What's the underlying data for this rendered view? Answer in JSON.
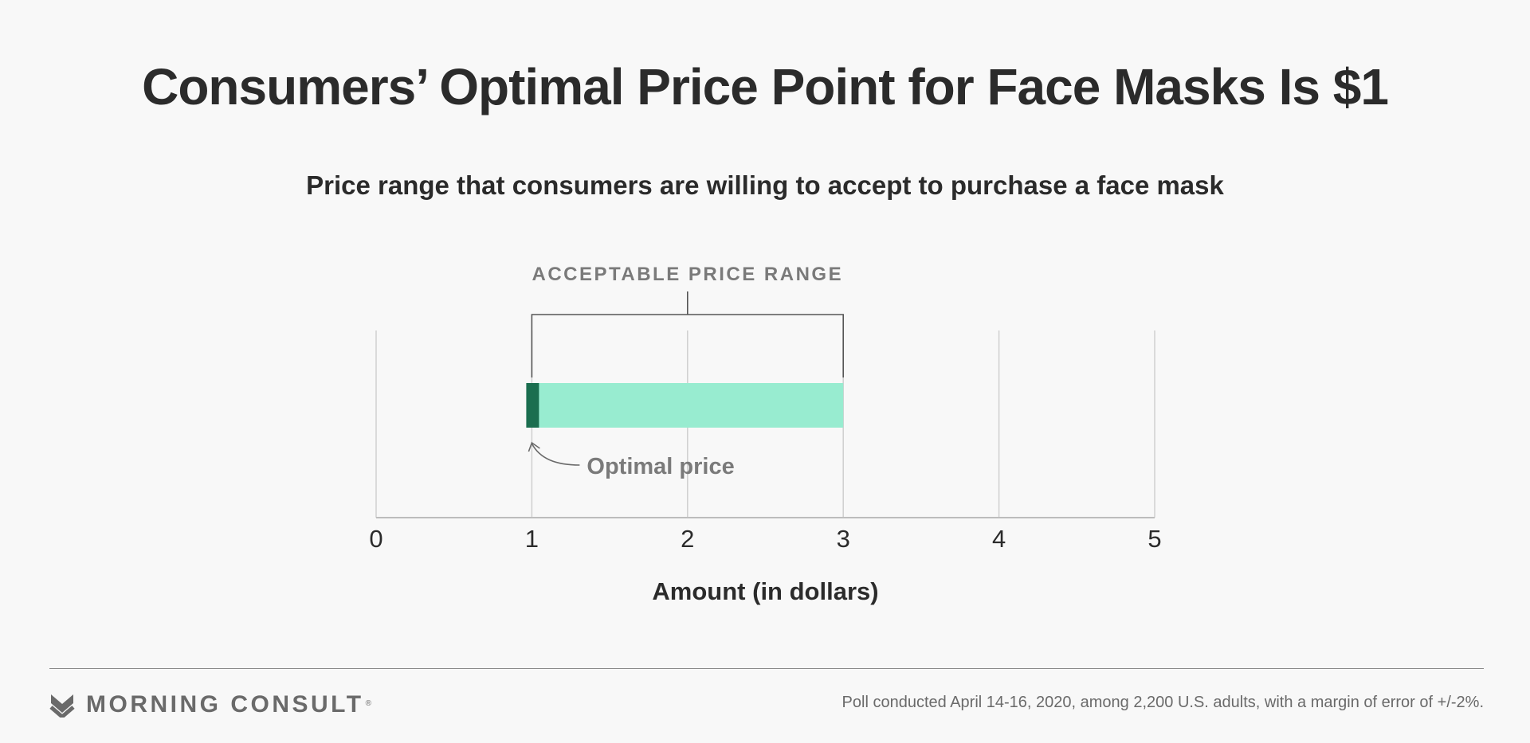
{
  "header": {
    "title": "Consumers’ Optimal Price Point for Face Masks Is $1",
    "subtitle": "Price range that consumers are willing to accept to purchase a face mask"
  },
  "chart_data": {
    "type": "bar",
    "orientation": "horizontal",
    "x": {
      "label": "Amount (in dollars)",
      "min": 0,
      "max": 5,
      "ticks": [
        0,
        1,
        2,
        3,
        4,
        5
      ]
    },
    "grid": true,
    "series": [
      {
        "name": "Acceptable price range",
        "start": 1,
        "end": 3,
        "color": "#98ecd0"
      }
    ],
    "optimal": {
      "value": 1,
      "color": "#1b6e4f"
    },
    "annotations": {
      "range_label": "ACCEPTABLE PRICE RANGE",
      "optimal_label": "Optimal price"
    }
  },
  "footer": {
    "brand": "MORNING CONSULT",
    "registered": "®",
    "note": "Poll conducted April 14-16, 2020, among 2,200 U.S. adults, with a margin of error of +/-2%."
  },
  "colors": {
    "background": "#f8f8f8",
    "text": "#2b2b2b",
    "muted": "#7a7a7a",
    "grid": "#cfcfcf"
  }
}
